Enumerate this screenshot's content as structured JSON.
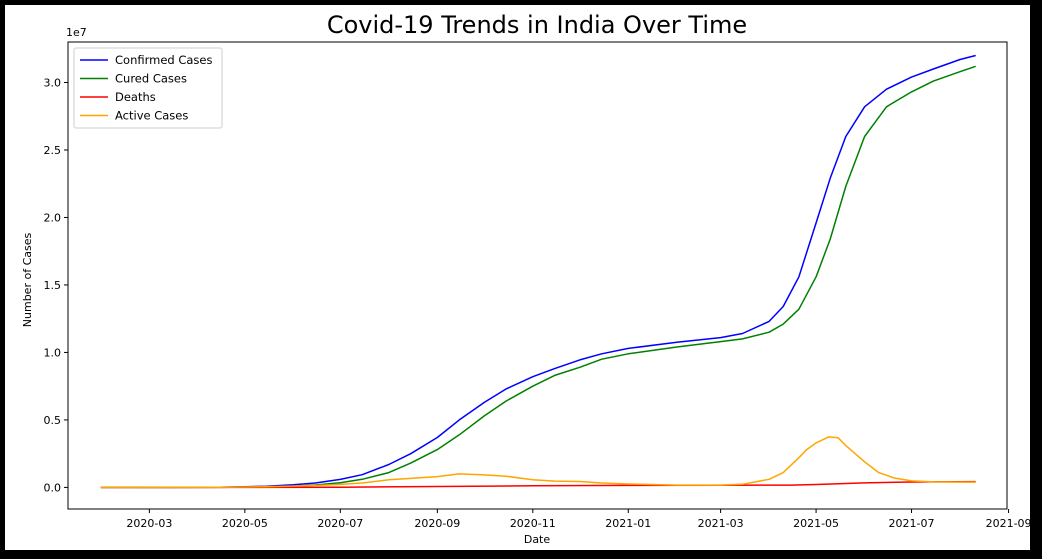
{
  "chart_data": {
    "type": "line",
    "title": "Covid-19 Trends in India Over Time",
    "xlabel": "Date",
    "ylabel": "Number of Cases",
    "y_offset_label": "1e7",
    "ylim": [
      -1600000,
      33000000
    ],
    "xlim": [
      "2020-01-09",
      "2021-08-31"
    ],
    "x_ticks": [
      "2020-03",
      "2020-05",
      "2020-07",
      "2020-09",
      "2020-11",
      "2021-01",
      "2021-03",
      "2021-05",
      "2021-07",
      "2021-09"
    ],
    "x_tick_dates": [
      "2020-03-01",
      "2020-05-01",
      "2020-07-01",
      "2020-09-01",
      "2020-11-01",
      "2021-01-01",
      "2021-03-01",
      "2021-05-01",
      "2021-07-01",
      "2021-09-01"
    ],
    "y_ticks": [
      0,
      5000000,
      10000000,
      15000000,
      20000000,
      25000000,
      30000000
    ],
    "y_tick_labels": [
      "0.0",
      "0.5",
      "1.0",
      "1.5",
      "2.0",
      "2.5",
      "3.0"
    ],
    "grid": false,
    "legend_position": "top-left",
    "series": [
      {
        "name": "Confirmed Cases",
        "color": "#0000ff",
        "points": [
          [
            "2020-01-30",
            0
          ],
          [
            "2020-03-15",
            110
          ],
          [
            "2020-04-15",
            12000
          ],
          [
            "2020-05-15",
            82000
          ],
          [
            "2020-06-01",
            190000
          ],
          [
            "2020-06-15",
            330000
          ],
          [
            "2020-07-01",
            590000
          ],
          [
            "2020-07-15",
            940000
          ],
          [
            "2020-08-01",
            1700000
          ],
          [
            "2020-08-15",
            2500000
          ],
          [
            "2020-09-01",
            3700000
          ],
          [
            "2020-09-15",
            5000000
          ],
          [
            "2020-10-01",
            6300000
          ],
          [
            "2020-10-15",
            7300000
          ],
          [
            "2020-11-01",
            8200000
          ],
          [
            "2020-11-15",
            8800000
          ],
          [
            "2020-12-01",
            9450000
          ],
          [
            "2020-12-15",
            9900000
          ],
          [
            "2021-01-01",
            10300000
          ],
          [
            "2021-02-01",
            10750000
          ],
          [
            "2021-03-01",
            11100000
          ],
          [
            "2021-03-15",
            11400000
          ],
          [
            "2021-04-01",
            12300000
          ],
          [
            "2021-04-10",
            13400000
          ],
          [
            "2021-04-20",
            15600000
          ],
          [
            "2021-05-01",
            19600000
          ],
          [
            "2021-05-10",
            22900000
          ],
          [
            "2021-05-20",
            26000000
          ],
          [
            "2021-06-01",
            28200000
          ],
          [
            "2021-06-15",
            29500000
          ],
          [
            "2021-07-01",
            30400000
          ],
          [
            "2021-07-15",
            31000000
          ],
          [
            "2021-08-01",
            31700000
          ],
          [
            "2021-08-11",
            32000000
          ]
        ]
      },
      {
        "name": "Cured Cases",
        "color": "#008000",
        "points": [
          [
            "2020-01-30",
            0
          ],
          [
            "2020-04-15",
            1500
          ],
          [
            "2020-05-15",
            34000
          ],
          [
            "2020-06-01",
            91000
          ],
          [
            "2020-06-15",
            180000
          ],
          [
            "2020-07-01",
            350000
          ],
          [
            "2020-07-15",
            600000
          ],
          [
            "2020-08-01",
            1100000
          ],
          [
            "2020-08-15",
            1800000
          ],
          [
            "2020-09-01",
            2800000
          ],
          [
            "2020-09-15",
            3900000
          ],
          [
            "2020-10-01",
            5300000
          ],
          [
            "2020-10-15",
            6400000
          ],
          [
            "2020-11-01",
            7500000
          ],
          [
            "2020-11-15",
            8300000
          ],
          [
            "2020-12-01",
            8900000
          ],
          [
            "2020-12-15",
            9500000
          ],
          [
            "2021-01-01",
            9900000
          ],
          [
            "2021-02-01",
            10400000
          ],
          [
            "2021-03-01",
            10800000
          ],
          [
            "2021-03-15",
            11000000
          ],
          [
            "2021-04-01",
            11500000
          ],
          [
            "2021-04-10",
            12100000
          ],
          [
            "2021-04-20",
            13200000
          ],
          [
            "2021-05-01",
            15600000
          ],
          [
            "2021-05-10",
            18400000
          ],
          [
            "2021-05-20",
            22300000
          ],
          [
            "2021-06-01",
            26000000
          ],
          [
            "2021-06-15",
            28200000
          ],
          [
            "2021-07-01",
            29300000
          ],
          [
            "2021-07-15",
            30100000
          ],
          [
            "2021-08-01",
            30800000
          ],
          [
            "2021-08-11",
            31200000
          ]
        ]
      },
      {
        "name": "Deaths",
        "color": "#ff0000",
        "points": [
          [
            "2020-01-30",
            0
          ],
          [
            "2020-05-01",
            1100
          ],
          [
            "2020-07-01",
            18000
          ],
          [
            "2020-09-01",
            66000
          ],
          [
            "2020-11-01",
            122000
          ],
          [
            "2021-01-01",
            149000
          ],
          [
            "2021-03-01",
            157000
          ],
          [
            "2021-04-15",
            173000
          ],
          [
            "2021-05-01",
            212000
          ],
          [
            "2021-06-01",
            336000
          ],
          [
            "2021-07-01",
            400000
          ],
          [
            "2021-08-11",
            429000
          ]
        ]
      },
      {
        "name": "Active Cases",
        "color": "#ffa500",
        "points": [
          [
            "2020-01-30",
            0
          ],
          [
            "2020-04-15",
            10000
          ],
          [
            "2020-05-15",
            47000
          ],
          [
            "2020-06-15",
            140000
          ],
          [
            "2020-07-01",
            220000
          ],
          [
            "2020-07-15",
            330000
          ],
          [
            "2020-08-01",
            560000
          ],
          [
            "2020-08-15",
            670000
          ],
          [
            "2020-09-01",
            800000
          ],
          [
            "2020-09-15",
            1000000
          ],
          [
            "2020-10-01",
            930000
          ],
          [
            "2020-10-15",
            830000
          ],
          [
            "2020-11-01",
            560000
          ],
          [
            "2020-11-15",
            470000
          ],
          [
            "2020-12-01",
            440000
          ],
          [
            "2020-12-15",
            330000
          ],
          [
            "2021-01-01",
            250000
          ],
          [
            "2021-02-01",
            170000
          ],
          [
            "2021-03-01",
            170000
          ],
          [
            "2021-03-15",
            230000
          ],
          [
            "2021-04-01",
            600000
          ],
          [
            "2021-04-10",
            1100000
          ],
          [
            "2021-04-20",
            2200000
          ],
          [
            "2021-04-25",
            2800000
          ],
          [
            "2021-05-01",
            3300000
          ],
          [
            "2021-05-09",
            3740000
          ],
          [
            "2021-05-15",
            3680000
          ],
          [
            "2021-05-20",
            3100000
          ],
          [
            "2021-06-01",
            1900000
          ],
          [
            "2021-06-10",
            1100000
          ],
          [
            "2021-06-20",
            700000
          ],
          [
            "2021-07-01",
            480000
          ],
          [
            "2021-07-15",
            410000
          ],
          [
            "2021-08-01",
            390000
          ],
          [
            "2021-08-11",
            390000
          ]
        ]
      }
    ]
  }
}
